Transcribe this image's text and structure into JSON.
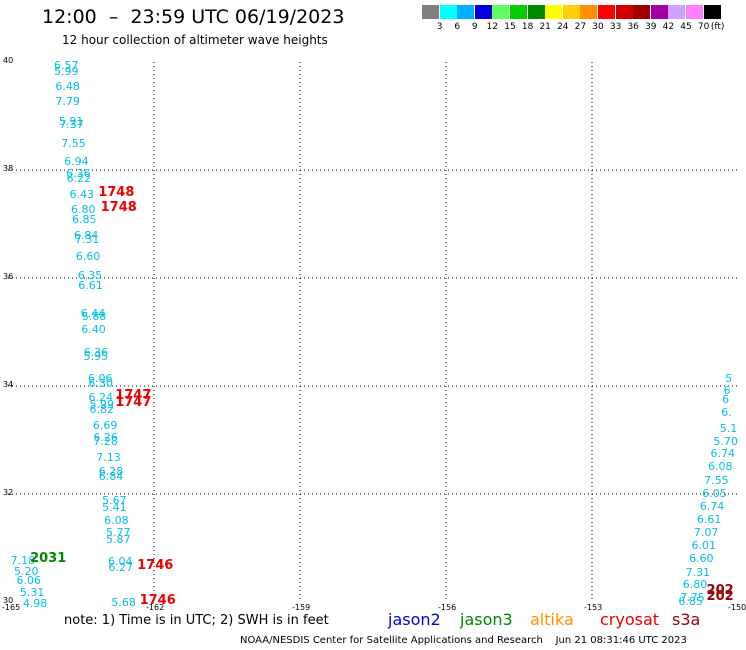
{
  "header": {
    "title": "12:00  –  23:59 UTC 06/19/2023",
    "subtitle": "12 hour collection of altimeter wave heights"
  },
  "colorbar": {
    "unit": "(ft)",
    "ticks": [
      "3",
      "6",
      "9",
      "12",
      "15",
      "18",
      "21",
      "24",
      "27",
      "30",
      "33",
      "36",
      "39",
      "42",
      "45",
      "70"
    ],
    "colors": [
      "#808080",
      "#00ffff",
      "#00b0ff",
      "#0000e0",
      "#60ff60",
      "#00d000",
      "#008800",
      "#ffff00",
      "#ffd000",
      "#ff9000",
      "#ff0000",
      "#d00000",
      "#a00000",
      "#a000a0",
      "#d0a0ff",
      "#ff80ff",
      "#000000"
    ]
  },
  "map": {
    "lat_labels": [
      "40",
      "38",
      "36",
      "34",
      "32",
      "30"
    ],
    "lon_labels": [
      "-165",
      "-162",
      "-159",
      "-156",
      "-153",
      "-150"
    ],
    "lon_range": [
      -165,
      -150
    ],
    "lat_range": [
      30,
      40
    ],
    "wave_color": "#00bfe6",
    "time_colors": {
      "red": "#ee0000",
      "green": "#008800",
      "darkred": "#990000"
    }
  },
  "track_west": [
    {
      "v": "6.57",
      "lat": 39.94,
      "lon": -163.85
    },
    {
      "v": "5.99",
      "lat": 39.84,
      "lon": -163.85
    },
    {
      "v": "6.48",
      "lat": 39.55,
      "lon": -163.82
    },
    {
      "v": "7.79",
      "lat": 39.27,
      "lon": -163.82
    },
    {
      "v": "5.91",
      "lat": 38.9,
      "lon": -163.75
    },
    {
      "v": "7.37",
      "lat": 38.85,
      "lon": -163.74
    },
    {
      "v": "7.55",
      "lat": 38.5,
      "lon": -163.7
    },
    {
      "v": "6.94",
      "lat": 38.16,
      "lon": -163.64
    },
    {
      "v": "6.36",
      "lat": 37.95,
      "lon": -163.6
    },
    {
      "v": "6.22",
      "lat": 37.85,
      "lon": -163.59
    },
    {
      "v": "6.43",
      "lat": 37.55,
      "lon": -163.53
    },
    {
      "v": "6.80",
      "lat": 37.27,
      "lon": -163.5
    },
    {
      "v": "6.85",
      "lat": 37.09,
      "lon": -163.48
    },
    {
      "v": "6.84",
      "lat": 36.79,
      "lon": -163.44
    },
    {
      "v": "7.31",
      "lat": 36.73,
      "lon": -163.42
    },
    {
      "v": "6.60",
      "lat": 36.4,
      "lon": -163.4
    },
    {
      "v": "6.35",
      "lat": 36.06,
      "lon": -163.36
    },
    {
      "v": "6.61",
      "lat": 35.87,
      "lon": -163.35
    },
    {
      "v": "6.44",
      "lat": 35.35,
      "lon": -163.3
    },
    {
      "v": "5.88",
      "lat": 35.3,
      "lon": -163.28
    },
    {
      "v": "6.40",
      "lat": 35.06,
      "lon": -163.29
    },
    {
      "v": "6.36",
      "lat": 34.63,
      "lon": -163.24
    },
    {
      "v": "5.95",
      "lat": 34.55,
      "lon": -163.24
    },
    {
      "v": "6.06",
      "lat": 34.15,
      "lon": -163.15
    },
    {
      "v": "6.30",
      "lat": 34.06,
      "lon": -163.14
    },
    {
      "v": "6.24",
      "lat": 33.8,
      "lon": -163.14
    },
    {
      "v": "5.99",
      "lat": 33.66,
      "lon": -163.12
    },
    {
      "v": "6.82",
      "lat": 33.57,
      "lon": -163.12
    },
    {
      "v": "6.69",
      "lat": 33.27,
      "lon": -163.05
    },
    {
      "v": "6.26",
      "lat": 33.05,
      "lon": -163.04
    },
    {
      "v": "7.28",
      "lat": 32.98,
      "lon": -163.04
    },
    {
      "v": "7.13",
      "lat": 32.68,
      "lon": -162.98
    },
    {
      "v": "6.28",
      "lat": 32.42,
      "lon": -162.93
    },
    {
      "v": "6.84",
      "lat": 32.34,
      "lon": -162.93
    },
    {
      "v": "5.67",
      "lat": 31.88,
      "lon": -162.86
    },
    {
      "v": "5.41",
      "lat": 31.76,
      "lon": -162.86
    },
    {
      "v": "6.08",
      "lat": 31.52,
      "lon": -162.82
    },
    {
      "v": "5.77",
      "lat": 31.29,
      "lon": -162.78
    },
    {
      "v": "5.87",
      "lat": 31.17,
      "lon": -162.78
    },
    {
      "v": "6.04",
      "lat": 30.76,
      "lon": -162.74
    },
    {
      "v": "6.27",
      "lat": 30.65,
      "lon": -162.73
    },
    {
      "v": "5.68",
      "lat": 30.0,
      "lon": -162.67
    }
  ],
  "track_sw": [
    {
      "v": "7.18",
      "lat": 30.78,
      "lon": -164.74
    },
    {
      "v": "5.20",
      "lat": 30.58,
      "lon": -164.67
    },
    {
      "v": "6.06",
      "lat": 30.4,
      "lon": -164.62
    },
    {
      "v": "5.31",
      "lat": 30.19,
      "lon": -164.55
    },
    {
      "v": "4.98",
      "lat": 29.98,
      "lon": -164.49
    }
  ],
  "track_east": [
    {
      "v": "5",
      "lat": 34.14,
      "lon": -150.06
    },
    {
      "v": "6",
      "lat": 33.92,
      "lon": -150.09
    },
    {
      "v": "6",
      "lat": 33.76,
      "lon": -150.12
    },
    {
      "v": "6.",
      "lat": 33.52,
      "lon": -150.14
    },
    {
      "v": "5.1",
      "lat": 33.23,
      "lon": -150.17
    },
    {
      "v": "5.70",
      "lat": 32.99,
      "lon": -150.3
    },
    {
      "v": "6.74",
      "lat": 32.76,
      "lon": -150.36
    },
    {
      "v": "6.08",
      "lat": 32.51,
      "lon": -150.41
    },
    {
      "v": "7.55",
      "lat": 32.26,
      "lon": -150.49
    },
    {
      "v": "6.05",
      "lat": 32.02,
      "lon": -150.53
    },
    {
      "v": "6.74",
      "lat": 31.78,
      "lon": -150.58
    },
    {
      "v": "6.61",
      "lat": 31.53,
      "lon": -150.64
    },
    {
      "v": "7.07",
      "lat": 31.29,
      "lon": -150.7
    },
    {
      "v": "6.01",
      "lat": 31.05,
      "lon": -150.75
    },
    {
      "v": "6.60",
      "lat": 30.81,
      "lon": -150.8
    },
    {
      "v": "7.31",
      "lat": 30.56,
      "lon": -150.87
    },
    {
      "v": "6.80",
      "lat": 30.33,
      "lon": -150.93
    },
    {
      "v": "7.75",
      "lat": 30.1,
      "lon": -150.98
    },
    {
      "v": "6.85",
      "lat": 30.01,
      "lon": -151.02
    }
  ],
  "time_labels": [
    {
      "t": "1748",
      "lat": 37.55,
      "lon": -162.9,
      "color": "red"
    },
    {
      "t": "1748",
      "lat": 37.27,
      "lon": -162.85,
      "color": "red"
    },
    {
      "t": "1747",
      "lat": 33.8,
      "lon": -162.55,
      "color": "red"
    },
    {
      "t": "1747",
      "lat": 33.66,
      "lon": -162.55,
      "color": "red"
    },
    {
      "t": "1746",
      "lat": 30.65,
      "lon": -162.1,
      "color": "red"
    },
    {
      "t": "1746",
      "lat": 30.0,
      "lon": -162.05,
      "color": "red"
    },
    {
      "t": "2031",
      "lat": 30.78,
      "lon": -164.3,
      "color": "green"
    },
    {
      "t": "202",
      "lat": 30.19,
      "lon": -150.4,
      "color": "darkred"
    },
    {
      "t": "202",
      "lat": 30.07,
      "lon": -150.4,
      "color": "darkred"
    }
  ],
  "note": "note:  1) Time is in UTC;  2) SWH is in feet",
  "missions": [
    {
      "name": "jason2",
      "color": "#0000dd"
    },
    {
      "name": "jason3",
      "color": "#008800"
    },
    {
      "name": "altika",
      "color": "#ff9000"
    },
    {
      "name": "cryosat",
      "color": "#ee0000"
    },
    {
      "name": "s3a",
      "color": "#990000"
    }
  ],
  "footer": "NOAA/NESDIS Center for Satellite Applications and Research    Jun 21 08:31:46 UTC 2023"
}
